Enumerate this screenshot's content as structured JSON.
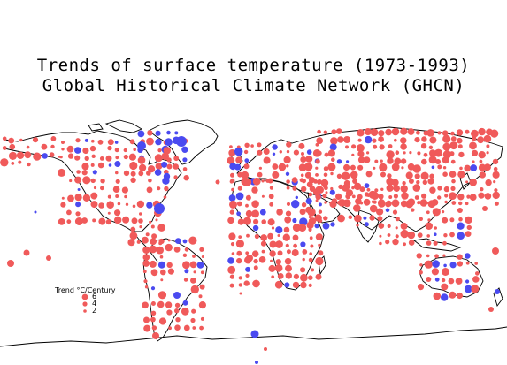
{
  "title": {
    "line1": "Trends of surface temperature (1973-1993)",
    "line2": "Global Historical Climate Network (GHCN)"
  },
  "legend": {
    "title": "Trend °C/Century",
    "levels": [
      "6",
      "4",
      "2"
    ]
  },
  "colors": {
    "warming": "#f05a5a",
    "cooling": "#4a4af0",
    "coastline": "#000000"
  }
}
